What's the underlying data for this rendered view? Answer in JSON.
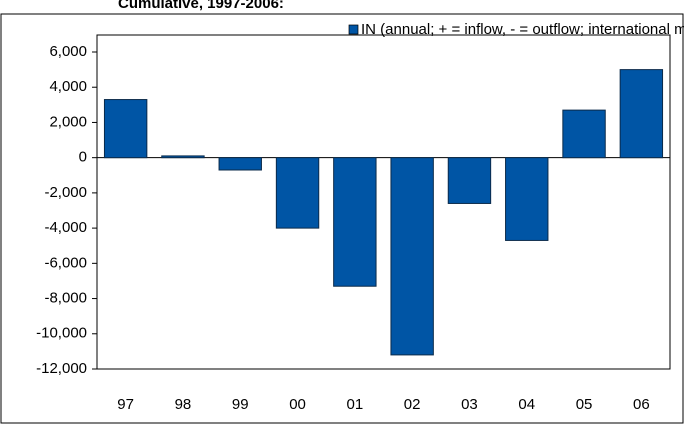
{
  "chart_data": {
    "type": "bar",
    "header": "Cumulative, 1997-2006:",
    "categories": [
      "97",
      "98",
      "99",
      "00",
      "01",
      "02",
      "03",
      "04",
      "05",
      "06"
    ],
    "series": [
      {
        "name": "IN (annual; + = inflow, - = outflow; international moves excluded)",
        "color": "#0055a5",
        "values": [
          3300,
          100,
          -700,
          -4000,
          -7300,
          -11200,
          -2600,
          -4700,
          2700,
          5000
        ]
      }
    ],
    "ylim": [
      -12000,
      6000
    ],
    "yticks": [
      {
        "value": 6000,
        "label": "6,000"
      },
      {
        "value": 4000,
        "label": "4,000"
      },
      {
        "value": 2000,
        "label": "2,000"
      },
      0,
      {
        "value": -2000,
        "label": "-2,000"
      },
      {
        "value": -4000,
        "label": "-4,000"
      },
      {
        "value": -6000,
        "label": "-6,000"
      },
      {
        "value": -8000,
        "label": "-8,000"
      },
      {
        "value": -10000,
        "label": "-10,000"
      },
      {
        "value": -12000,
        "label": "-12,000"
      }
    ],
    "legend": "top-right"
  }
}
